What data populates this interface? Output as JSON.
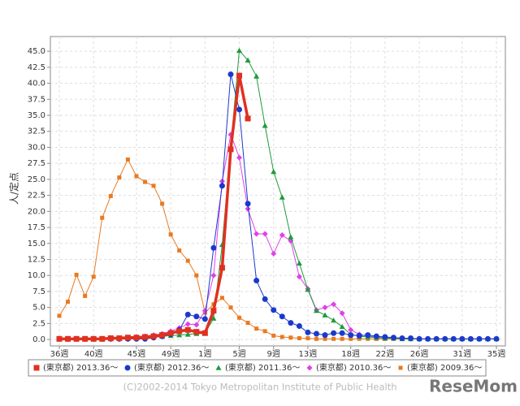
{
  "chart_data": {
    "type": "line",
    "y_label": "人/定点",
    "categories": [
      "36週",
      null,
      null,
      null,
      "40週",
      null,
      null,
      null,
      null,
      "45週",
      null,
      null,
      null,
      "49週",
      null,
      null,
      null,
      "1週",
      null,
      null,
      null,
      "5週",
      null,
      null,
      null,
      "9週",
      null,
      null,
      null,
      "13週",
      null,
      null,
      null,
      null,
      "18週",
      null,
      null,
      null,
      "22週",
      null,
      null,
      null,
      "26週",
      null,
      null,
      null,
      null,
      "31週",
      null,
      null,
      null,
      "35週"
    ],
    "ylim": [
      -1,
      47.3
    ],
    "yticks": [
      {
        "value": 0,
        "label": "0.0"
      },
      {
        "value": 2.5,
        "label": "2.5"
      },
      {
        "value": 5,
        "label": "5.0"
      },
      {
        "value": 7.5,
        "label": "7.5"
      },
      {
        "value": 10,
        "label": "10.0"
      },
      {
        "value": 12.5,
        "label": "12.5"
      },
      {
        "value": 15,
        "label": "15.0"
      },
      {
        "value": 17.5,
        "label": "17.5"
      },
      {
        "value": 20,
        "label": "20.0"
      },
      {
        "value": 22.5,
        "label": "22.5"
      },
      {
        "value": 25,
        "label": "25.0"
      },
      {
        "value": 27.5,
        "label": "27.5"
      },
      {
        "value": 30,
        "label": "30.0"
      },
      {
        "value": 32.5,
        "label": "32.5"
      },
      {
        "value": 35,
        "label": "35.0"
      },
      {
        "value": 37.5,
        "label": "37.5"
      },
      {
        "value": 40,
        "label": "40.0"
      },
      {
        "value": 42.5,
        "label": "42.5"
      },
      {
        "value": 45,
        "label": "45.0"
      }
    ],
    "grid": true,
    "series": [
      {
        "name": "(東京都) 2013.36～",
        "color": "#e03020",
        "marker": "square",
        "line_width": 3.5,
        "values": [
          0.1,
          0.1,
          0.1,
          0.1,
          0.1,
          0.1,
          0.2,
          0.2,
          0.3,
          0.3,
          0.4,
          0.5,
          0.7,
          1.0,
          1.3,
          1.5,
          1.2,
          1.0,
          4.5,
          11.2,
          29.7,
          41.2,
          34.5,
          null,
          null,
          null,
          null,
          null,
          null,
          null,
          null,
          null,
          null,
          null,
          null,
          null,
          null,
          null,
          null,
          null,
          null,
          null,
          null,
          null,
          null,
          null,
          null,
          null,
          null,
          null,
          null,
          null
        ]
      },
      {
        "name": "(東京都) 2012.36～",
        "color": "#1a3acc",
        "marker": "circle",
        "line_width": 1,
        "values": [
          0.1,
          0.1,
          0.1,
          0.1,
          0.1,
          0.1,
          0.1,
          0.1,
          0.1,
          0.1,
          0.1,
          0.3,
          0.5,
          0.8,
          1.5,
          3.9,
          3.6,
          3.2,
          14.3,
          24.0,
          41.4,
          35.9,
          21.2,
          9.2,
          6.3,
          4.6,
          3.6,
          2.6,
          2.1,
          1.1,
          0.9,
          0.7,
          1.0,
          1.0,
          0.7,
          0.6,
          0.7,
          0.5,
          0.4,
          0.3,
          0.2,
          0.2,
          0.1,
          0.1,
          0.1,
          0.1,
          0.1,
          0.1,
          0.1,
          0.1,
          0.1,
          0.1
        ]
      },
      {
        "name": "(東京都) 2011.36～",
        "color": "#1e9a3c",
        "marker": "triangle",
        "line_width": 1,
        "values": [
          0.1,
          0.1,
          0.1,
          0.1,
          0.1,
          0.1,
          0.1,
          0.2,
          0.2,
          0.3,
          0.3,
          0.4,
          0.5,
          0.6,
          0.7,
          0.8,
          0.9,
          1.0,
          3.3,
          14.8,
          30.0,
          45.1,
          43.6,
          41.1,
          33.4,
          26.2,
          22.2,
          16.0,
          11.9,
          7.8,
          4.5,
          3.8,
          3.0,
          2.0,
          0.8,
          0.5,
          0.4,
          0.3,
          0.2,
          0.2,
          0.1,
          0.1,
          0.1,
          0.1,
          0.1,
          0.1,
          0.1,
          0.1,
          0.1,
          0.1,
          0.1,
          0.1
        ]
      },
      {
        "name": "(東京都) 2010.36～",
        "color": "#e040e8",
        "marker": "diamond",
        "line_width": 1,
        "values": [
          0.1,
          0.1,
          0.1,
          0.1,
          0.1,
          0.1,
          0.1,
          0.1,
          0.3,
          0.4,
          0.5,
          0.7,
          0.9,
          1.3,
          1.8,
          2.4,
          2.3,
          4.5,
          10.0,
          24.7,
          32.0,
          28.4,
          20.4,
          16.5,
          16.5,
          13.4,
          16.3,
          15.4,
          9.8,
          7.9,
          4.6,
          5.0,
          5.5,
          4.1,
          1.5,
          0.8,
          0.5,
          0.4,
          0.3,
          0.2,
          0.2,
          0.1,
          0.1,
          0.1,
          0.1,
          0.1,
          0.1,
          0.1,
          0.1,
          0.1,
          0.1,
          0.1
        ]
      },
      {
        "name": "(東京都) 2009.36～",
        "color": "#e87a22",
        "marker": "small-square",
        "line_width": 1,
        "values": [
          3.7,
          5.9,
          10.1,
          6.8,
          9.8,
          19.0,
          22.4,
          25.3,
          28.1,
          25.5,
          24.6,
          24.0,
          21.2,
          16.4,
          13.9,
          12.3,
          10.0,
          4.2,
          5.5,
          6.5,
          5.0,
          3.4,
          2.6,
          1.7,
          1.3,
          0.6,
          0.4,
          0.3,
          0.2,
          0.2,
          0.1,
          0.1,
          0.1,
          0.1,
          0.1,
          0.1,
          0.1,
          0.1,
          0.1,
          0.1,
          0.1,
          0.1,
          0.1,
          0.1,
          0.1,
          0.1,
          0.1,
          0.1,
          0.1,
          0.1,
          0.1,
          0.1
        ]
      }
    ],
    "credit": "(C)2002-2014 Tokyo Metropolitan Institute of Public Health",
    "watermark": "ReseMom"
  }
}
